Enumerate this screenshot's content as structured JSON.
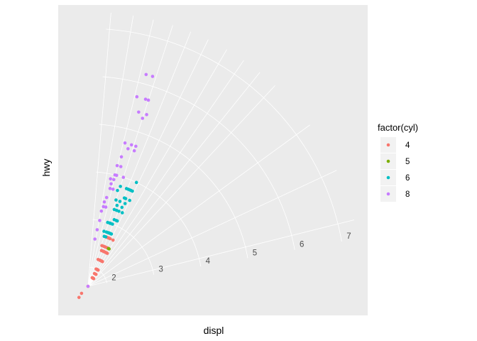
{
  "chart_data": {
    "type": "scatter",
    "coord": "polar (radial displ, angular hwy)",
    "xlabel": "displ",
    "ylabel": "hwy",
    "radial_ticks": [
      "2",
      "3",
      "4",
      "5",
      "6",
      "7"
    ],
    "radial_tick_values": [
      2,
      3,
      4,
      5,
      6,
      7
    ],
    "legend": {
      "title": "factor(cyl)",
      "entries": [
        {
          "label": "4",
          "color": "#F8766D"
        },
        {
          "label": "5",
          "color": "#7CAE00"
        },
        {
          "label": "6",
          "color": "#00BFC4"
        },
        {
          "label": "8",
          "color": "#C77CFF"
        }
      ],
      "placement": "right"
    },
    "panel_background": "#EBEBEB",
    "grid": true,
    "series": [
      {
        "name": "4",
        "color": "#F8766D",
        "points": [
          [
            1.4,
            44
          ],
          [
            1.3,
            40
          ],
          [
            1.8,
            36
          ],
          [
            1.8,
            37
          ],
          [
            1.9,
            34
          ],
          [
            1.9,
            33
          ],
          [
            2.0,
            32
          ],
          [
            2.0,
            31
          ],
          [
            1.8,
            30
          ],
          [
            2.2,
            30
          ],
          [
            2.4,
            30
          ],
          [
            1.8,
            29
          ],
          [
            2.0,
            29
          ],
          [
            2.4,
            29
          ],
          [
            2.0,
            28
          ],
          [
            2.2,
            28
          ],
          [
            2.5,
            28
          ],
          [
            2.7,
            28
          ],
          [
            1.8,
            27
          ],
          [
            2.0,
            27
          ],
          [
            2.2,
            27
          ],
          [
            2.4,
            27
          ],
          [
            1.6,
            26
          ],
          [
            1.9,
            26
          ],
          [
            2.4,
            26
          ],
          [
            2.5,
            26
          ],
          [
            1.8,
            25
          ],
          [
            2.2,
            25
          ],
          [
            2.5,
            25
          ],
          [
            2.0,
            24
          ],
          [
            2.4,
            24
          ],
          [
            2.7,
            24
          ],
          [
            2.2,
            23
          ],
          [
            2.4,
            23
          ],
          [
            2.5,
            22
          ],
          [
            2.7,
            22
          ],
          [
            2.4,
            21
          ],
          [
            2.7,
            21
          ],
          [
            2.5,
            20
          ],
          [
            2.7,
            20
          ],
          [
            2.2,
            19
          ],
          [
            2.4,
            19
          ],
          [
            2.7,
            18
          ],
          [
            2.5,
            17
          ]
        ]
      },
      {
        "name": "5",
        "color": "#7CAE00",
        "points": [
          [
            2.5,
            29
          ],
          [
            2.5,
            28
          ]
        ]
      },
      {
        "name": "6",
        "color": "#00BFC4",
        "points": [
          [
            4.0,
            24
          ],
          [
            3.8,
            24
          ],
          [
            3.6,
            25
          ],
          [
            3.3,
            24
          ],
          [
            3.1,
            23
          ],
          [
            2.8,
            23
          ],
          [
            3.5,
            23
          ],
          [
            3.8,
            23
          ],
          [
            2.8,
            22
          ],
          [
            3.1,
            22
          ],
          [
            3.4,
            22
          ],
          [
            3.6,
            22
          ],
          [
            3.8,
            22
          ],
          [
            2.8,
            21
          ],
          [
            3.3,
            21
          ],
          [
            3.6,
            21
          ],
          [
            3.8,
            21
          ],
          [
            2.8,
            20
          ],
          [
            3.0,
            20
          ],
          [
            3.1,
            20
          ],
          [
            3.8,
            20
          ],
          [
            2.8,
            19
          ],
          [
            3.3,
            19
          ],
          [
            3.5,
            19
          ],
          [
            2.7,
            18
          ],
          [
            3.0,
            18
          ],
          [
            3.4,
            18
          ],
          [
            3.3,
            17
          ],
          [
            2.8,
            17
          ],
          [
            3.0,
            17
          ],
          [
            3.5,
            16
          ],
          [
            3.8,
            16
          ],
          [
            2.7,
            16
          ],
          [
            3.7,
            15
          ],
          [
            3.0,
            15
          ],
          [
            2.8,
            14
          ]
        ]
      },
      {
        "name": "8",
        "color": "#C77CFF",
        "points": [
          [
            4.6,
            17
          ],
          [
            5.4,
            17
          ],
          [
            4.7,
            17
          ],
          [
            5.3,
            16
          ],
          [
            5.7,
            16
          ],
          [
            4.0,
            16
          ],
          [
            4.7,
            15
          ],
          [
            6.2,
            15
          ],
          [
            5.7,
            15
          ],
          [
            4.6,
            14
          ],
          [
            5.4,
            14
          ],
          [
            6.2,
            13
          ],
          [
            4.2,
            13
          ],
          [
            5.7,
            12
          ],
          [
            4.4,
            12
          ],
          [
            4.7,
            12
          ],
          [
            4.0,
            12
          ],
          [
            3.7,
            12
          ],
          [
            4.0,
            11
          ],
          [
            3.9,
            11
          ],
          [
            4.2,
            11
          ],
          [
            3.7,
            10
          ],
          [
            3.8,
            10
          ],
          [
            3.3,
            10
          ],
          [
            3.5,
            9
          ],
          [
            3.9,
            9
          ],
          [
            3.3,
            8
          ],
          [
            3.4,
            8
          ],
          [
            3.0,
            7
          ],
          [
            3.2,
            7
          ],
          [
            2.8,
            6
          ],
          [
            2.6,
            5
          ],
          [
            1.6,
            1
          ]
        ]
      }
    ]
  }
}
